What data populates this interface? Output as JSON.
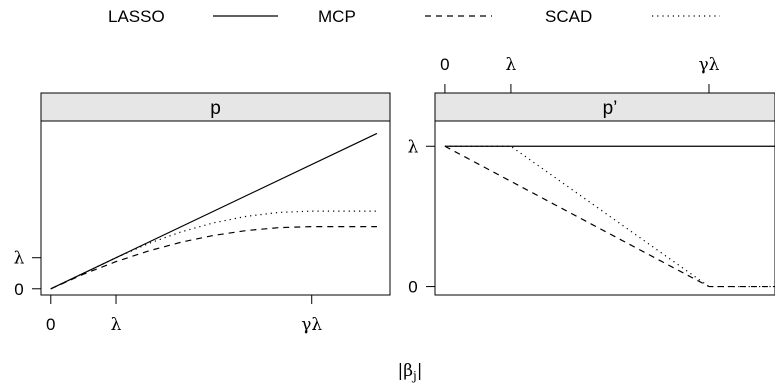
{
  "legend": {
    "placement": "top",
    "entries": [
      {
        "name": "LASSO",
        "dash": "solid"
      },
      {
        "name": "MCP",
        "dash": "dashed"
      },
      {
        "name": "SCAD",
        "dash": "dotted"
      }
    ]
  },
  "xlabel": "|βj|",
  "xlabel_base": "|β",
  "xlabel_sub": "j",
  "xlabel_end": "|",
  "params": {
    "lambda": 1,
    "gamma_lambda": 4
  },
  "chart_data": [
    {
      "type": "line",
      "title": "p",
      "xlim": [
        -0.15,
        5.2
      ],
      "ylim": [
        -0.2,
        5.4
      ],
      "x_ticks": [
        {
          "value": 0,
          "label": "0"
        },
        {
          "value": 1,
          "label": "λ"
        },
        {
          "value": 4,
          "label": "γλ"
        }
      ],
      "y_ticks": [
        {
          "value": 0,
          "label": "0"
        },
        {
          "value": 1,
          "label": "λ"
        }
      ],
      "tick_side_x": "bottom",
      "tick_side_y": "left",
      "series": [
        {
          "name": "LASSO",
          "dash": "solid",
          "x": [
            0,
            5
          ],
          "y": [
            0,
            5
          ]
        },
        {
          "name": "MCP",
          "dash": "dashed",
          "x": [
            0,
            0.5,
            1,
            1.5,
            2,
            2.5,
            3,
            3.5,
            4,
            4.5,
            5
          ],
          "y": [
            0,
            0.469,
            0.875,
            1.219,
            1.5,
            1.719,
            1.875,
            1.969,
            2,
            2,
            2
          ]
        },
        {
          "name": "SCAD",
          "dash": "dotted",
          "x": [
            0,
            0.5,
            1,
            1.5,
            2,
            2.5,
            3,
            3.5,
            4,
            4.5,
            5
          ],
          "y": [
            0,
            0.5,
            1,
            1.458,
            1.833,
            2.125,
            2.333,
            2.458,
            2.5,
            2.5,
            2.5
          ]
        }
      ]
    },
    {
      "type": "line",
      "title": "p’",
      "xlim": [
        -0.15,
        5.0
      ],
      "ylim": [
        -0.06,
        1.18
      ],
      "x_ticks": [
        {
          "value": 0,
          "label": "0"
        },
        {
          "value": 1,
          "label": "λ"
        },
        {
          "value": 4,
          "label": "γλ"
        }
      ],
      "y_ticks": [
        {
          "value": 0,
          "label": "0"
        },
        {
          "value": 1,
          "label": "λ"
        }
      ],
      "tick_side_x": "top",
      "tick_side_y": "left",
      "series": [
        {
          "name": "LASSO",
          "dash": "solid",
          "x": [
            0,
            5
          ],
          "y": [
            1,
            1
          ]
        },
        {
          "name": "MCP",
          "dash": "dashed",
          "x": [
            0,
            4,
            5
          ],
          "y": [
            1,
            0,
            0
          ]
        },
        {
          "name": "SCAD",
          "dash": "dotted",
          "x": [
            0,
            1,
            4,
            5
          ],
          "y": [
            1,
            1,
            0,
            0
          ]
        }
      ]
    }
  ]
}
